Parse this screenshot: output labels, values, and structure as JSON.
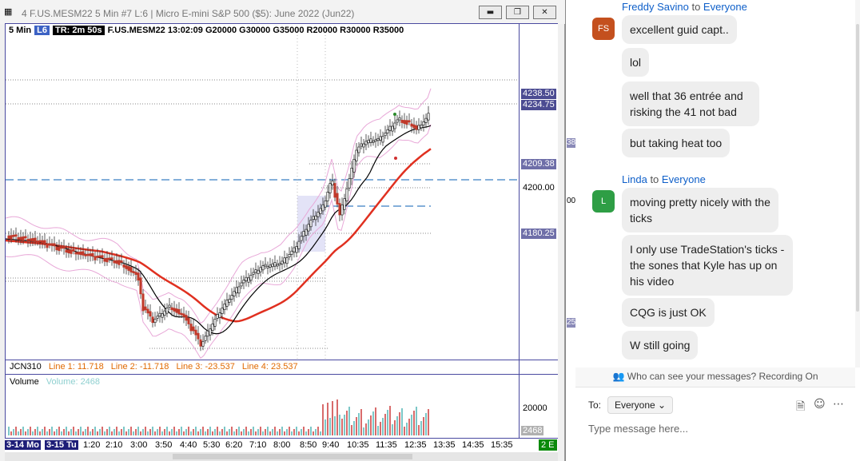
{
  "chart_window": {
    "title": "4 F.US.MESM22  5 Min  #7 L:6 | Micro E-mini S&P 500 ($5): June 2022 (Jun22)",
    "header": {
      "interval": "5 Min",
      "layout_tag": "L6",
      "time_remaining": "TR: 2m 50s",
      "info": "F.US.MESM22 13:02:09 G20000  G30000  G35000  R20000  R30000  R35000"
    },
    "price_labels": [
      {
        "text": "4238.50",
        "style": "dark"
      },
      {
        "text": "4234.75",
        "style": "dark"
      },
      {
        "text": "4209.38",
        "style": "light"
      },
      {
        "text": "4200.00",
        "style": "plain"
      },
      {
        "text": "4180.25",
        "style": "light"
      }
    ],
    "indicator": {
      "name": "JCN310",
      "line1": "Line 1: 11.718",
      "line2": "Line 2: -11.718",
      "line3": "Line 3: -23.537",
      "line4": "Line 4: 23.537"
    },
    "volume": {
      "label": "Volume",
      "value_text": "Volume: 2468",
      "axis_label": "20000",
      "last_value": "2468"
    },
    "time_ticks": [
      "3-14 Mo",
      "3-15 Tu",
      "1:20",
      "2:10",
      "3:00",
      "3:50",
      "4:40",
      "5:30",
      "6:20",
      "7:10",
      "8:00",
      "8:50",
      "9:40",
      "10:35",
      "11:35",
      "12:35",
      "13:35",
      "14:35",
      "15:35"
    ],
    "status_badge": "2 E",
    "colors": {
      "up": "#2a2a2a",
      "down": "#c0392b",
      "ma_slow": "#e03020",
      "ma_fast": "#000000",
      "band": "#e8a8d8",
      "frame": "#4a4aa0"
    }
  },
  "side_strip": {
    "labels": [
      "38",
      "00",
      "25"
    ]
  },
  "chat": {
    "messages": [
      {
        "sender": "Freddy Savino",
        "to": "to",
        "recipient": "Everyone",
        "initials": "FS",
        "avatar_color": "#c4501e",
        "bubbles": [
          "excellent guid capt..",
          "lol",
          "well that 36 entrée and risking the 41 not bad",
          "but taking heat too"
        ]
      },
      {
        "sender": "Linda",
        "to": "to",
        "recipient": "Everyone",
        "initials": "L",
        "avatar_color": "#2e9e45",
        "bubbles": [
          "moving pretty  nicely  with the ticks",
          "I  only  use  TradeStation's ticks - the sones that Kyle has up on his video",
          "CQG  is just OK",
          "W still going"
        ]
      }
    ],
    "visibility_notice": "Who can see your messages? Recording On",
    "composer": {
      "to_label": "To:",
      "recipient": "Everyone",
      "placeholder": "Type message here..."
    }
  }
}
